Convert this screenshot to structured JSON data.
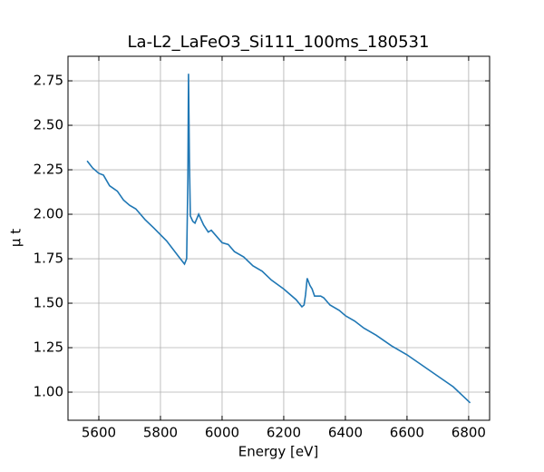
{
  "chart_data": {
    "type": "line",
    "title": "La-L2_LaFeO3_Si111_100ms_180531",
    "xlabel": "Energy [eV]",
    "ylabel": "μ t",
    "x": [
      5562,
      5580,
      5600,
      5615,
      5635,
      5660,
      5680,
      5700,
      5720,
      5750,
      5780,
      5820,
      5860,
      5878,
      5885,
      5889,
      5891,
      5894,
      5897,
      5905,
      5912,
      5924,
      5940,
      5955,
      5965,
      5980,
      6000,
      6020,
      6040,
      6070,
      6100,
      6130,
      6160,
      6200,
      6240,
      6259,
      6266,
      6271,
      6276,
      6285,
      6292,
      6300,
      6320,
      6330,
      6350,
      6380,
      6400,
      6430,
      6460,
      6500,
      6550,
      6600,
      6650,
      6700,
      6750,
      6805
    ],
    "series": [
      {
        "color": "#1f77b4",
        "values": [
          2.3,
          2.26,
          2.23,
          2.22,
          2.16,
          2.13,
          2.08,
          2.05,
          2.03,
          1.97,
          1.92,
          1.85,
          1.76,
          1.72,
          1.75,
          2.2,
          2.79,
          2.3,
          1.99,
          1.96,
          1.95,
          2.0,
          1.94,
          1.9,
          1.91,
          1.88,
          1.84,
          1.83,
          1.79,
          1.76,
          1.71,
          1.68,
          1.63,
          1.58,
          1.52,
          1.48,
          1.49,
          1.55,
          1.64,
          1.6,
          1.58,
          1.54,
          1.54,
          1.53,
          1.49,
          1.46,
          1.43,
          1.4,
          1.36,
          1.32,
          1.26,
          1.21,
          1.15,
          1.09,
          1.03,
          0.94
        ]
      }
    ],
    "xlim": [
      5500,
      6868
    ],
    "ylim": [
      0.842,
      2.888
    ],
    "xticks": [
      5600,
      5800,
      6000,
      6200,
      6400,
      6600,
      6800
    ],
    "yticks": [
      {
        "value": 1,
        "label": "1.00"
      },
      1.25,
      {
        "value": 1.5,
        "label": "1.50"
      },
      1.75,
      {
        "value": 2,
        "label": "2.00"
      },
      2.25,
      {
        "value": 2.5,
        "label": "2.50"
      },
      2.75
    ],
    "grid": true
  }
}
